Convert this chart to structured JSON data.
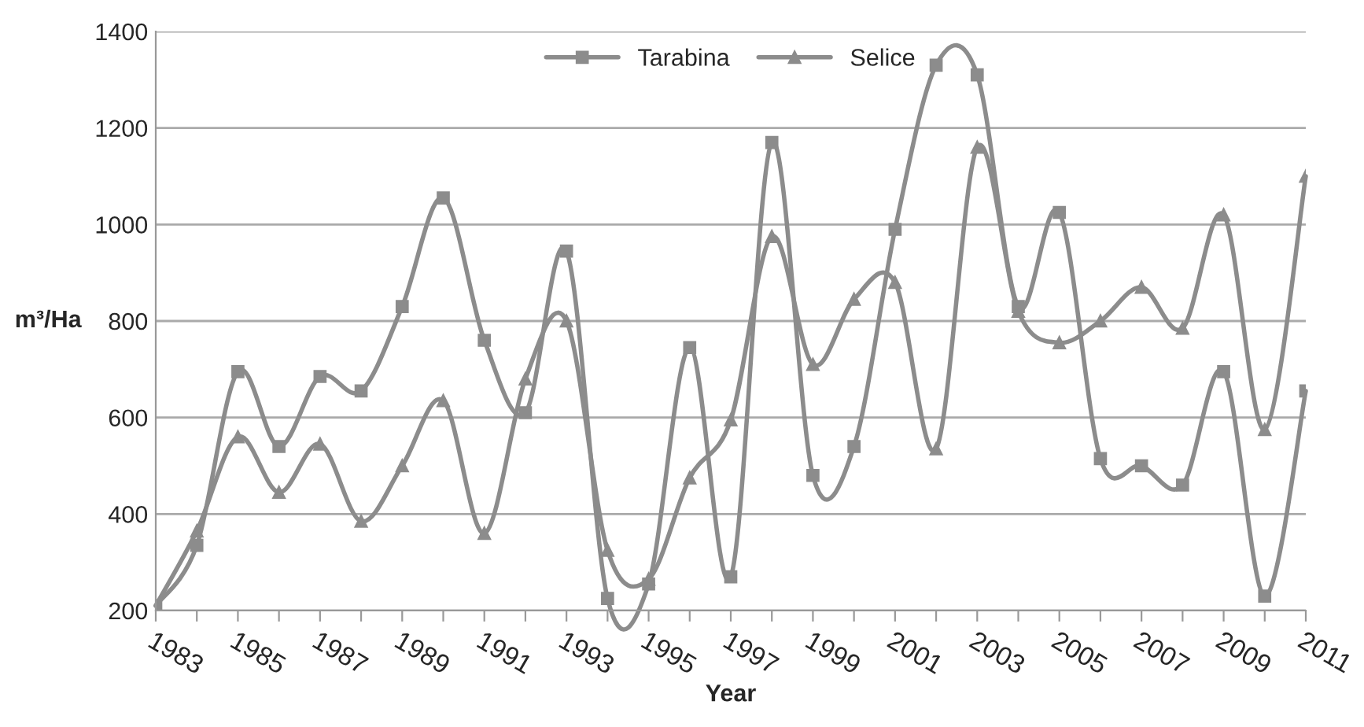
{
  "chart_data": {
    "type": "line",
    "xlabel": "Year",
    "ylabel": "m³/Ha",
    "x": [
      1983,
      1984,
      1985,
      1986,
      1987,
      1988,
      1989,
      1990,
      1991,
      1992,
      1993,
      1994,
      1995,
      1996,
      1997,
      1998,
      1999,
      2000,
      2001,
      2002,
      2003,
      2004,
      2005,
      2006,
      2007,
      2008,
      2009,
      2010,
      2011
    ],
    "series": [
      {
        "name": "Tarabina",
        "color": "#8c8c8c",
        "marker": "square",
        "values": [
          210,
          335,
          695,
          540,
          685,
          655,
          830,
          1055,
          760,
          610,
          945,
          225,
          255,
          745,
          270,
          1170,
          480,
          540,
          990,
          1330,
          1310,
          830,
          1025,
          515,
          500,
          460,
          695,
          230,
          655
        ]
      },
      {
        "name": "Selice",
        "color": "#8c8c8c",
        "marker": "triangle",
        "values": [
          210,
          365,
          560,
          445,
          545,
          385,
          500,
          635,
          360,
          680,
          800,
          325,
          265,
          475,
          595,
          975,
          710,
          845,
          880,
          535,
          1160,
          820,
          755,
          800,
          870,
          785,
          1020,
          575,
          1100
        ]
      }
    ],
    "xlim": [
      1983,
      2011
    ],
    "xticks": [
      1983,
      {
        "value": 1984,
        "label": null
      },
      1985,
      {
        "value": 1986,
        "label": null
      },
      1987,
      {
        "value": 1988,
        "label": null
      },
      1989,
      {
        "value": 1990,
        "label": null
      },
      1991,
      {
        "value": 1992,
        "label": null
      },
      1993,
      {
        "value": 1994,
        "label": null
      },
      1995,
      {
        "value": 1996,
        "label": null
      },
      1997,
      {
        "value": 1998,
        "label": null
      },
      1999,
      {
        "value": 2000,
        "label": null
      },
      2001,
      {
        "value": 2002,
        "label": null
      },
      2003,
      {
        "value": 2004,
        "label": null
      },
      2005,
      {
        "value": 2006,
        "label": null
      },
      2007,
      {
        "value": 2008,
        "label": null
      },
      2009,
      {
        "value": 2010,
        "label": null
      },
      2011
    ],
    "ylim": [
      200,
      1400
    ],
    "yticks": [
      200,
      400,
      600,
      800,
      1000,
      1200,
      1400
    ],
    "grid": "y",
    "legend": "top",
    "line_style": "solid"
  }
}
